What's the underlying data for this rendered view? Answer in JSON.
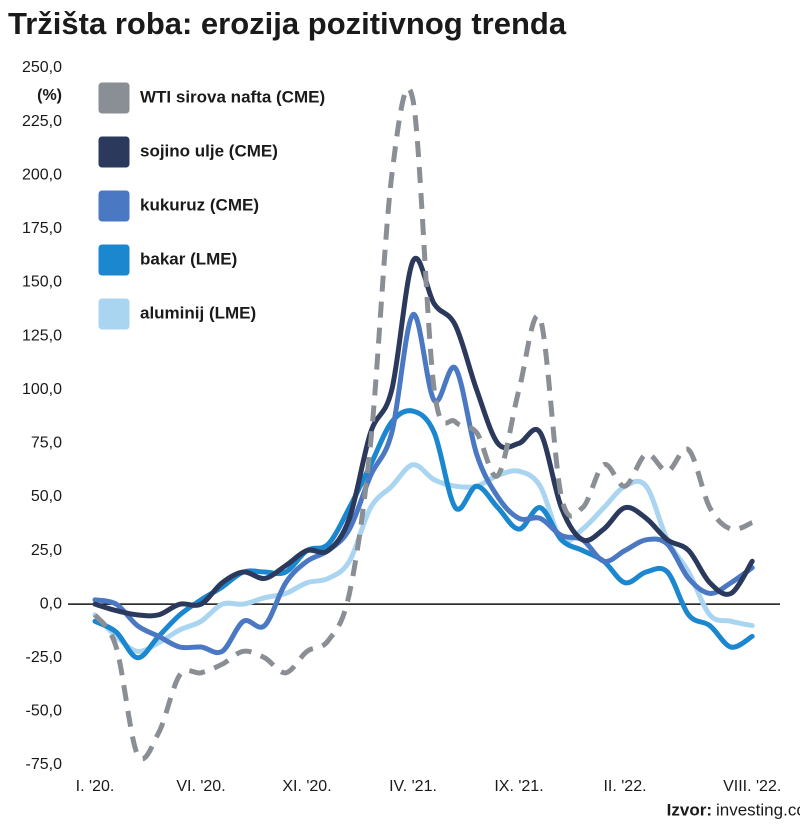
{
  "chart_data": {
    "type": "line",
    "title": "Tržišta roba: erozija pozitivnog trenda",
    "y_unit": "(%)",
    "source_label": "Izvor:",
    "source_text": "investing.com, Bloomberg, LME",
    "categories": [
      "I. '20.",
      null,
      null,
      null,
      null,
      "VI. '20.",
      null,
      null,
      null,
      null,
      "XI. '20.",
      null,
      null,
      null,
      null,
      "IV. '21.",
      null,
      null,
      null,
      null,
      "IX. '21.",
      null,
      null,
      null,
      null,
      "II. '22.",
      null,
      null,
      null,
      null,
      null,
      "VIII. '22."
    ],
    "ylim": [
      -75,
      250
    ],
    "yticks": [
      {
        "value": -75,
        "label": "-75,0"
      },
      {
        "value": -50,
        "label": "-50,0"
      },
      {
        "value": -25,
        "label": "-25,0"
      },
      {
        "value": 0,
        "label": "0,0"
      },
      {
        "value": 25,
        "label": "25,0"
      },
      {
        "value": 50,
        "label": "50,0"
      },
      {
        "value": 75,
        "label": "75,0"
      },
      {
        "value": 100,
        "label": "100,0"
      },
      {
        "value": 125,
        "label": "125,0"
      },
      {
        "value": 150,
        "label": "150,0"
      },
      {
        "value": 175,
        "label": "175,0"
      },
      {
        "value": 200,
        "label": "200,0"
      },
      {
        "value": 225,
        "label": "225,0"
      },
      {
        "value": 250,
        "label": "250,0"
      }
    ],
    "series": [
      {
        "name": "WTI sirova nafta (CME)",
        "color": "#8a8f95",
        "dashed": true,
        "values": [
          -5,
          -20,
          -70,
          -60,
          -33,
          -32,
          -28,
          -22,
          -25,
          -32,
          -22,
          -17,
          5,
          75,
          200,
          235,
          100,
          85,
          80,
          60,
          100,
          133,
          50,
          45,
          65,
          55,
          70,
          62,
          72,
          45,
          35,
          38
        ]
      },
      {
        "name": "sojino ulje (CME)",
        "color": "#2b3a5c",
        "values": [
          0,
          -3,
          -5,
          -5,
          0,
          0,
          10,
          15,
          12,
          18,
          25,
          25,
          40,
          80,
          100,
          160,
          140,
          130,
          100,
          75,
          75,
          80,
          45,
          30,
          35,
          45,
          40,
          30,
          25,
          10,
          5,
          20
        ]
      },
      {
        "name": "kukuruz (CME)",
        "color": "#4a78c2",
        "values": [
          2,
          0,
          -10,
          -15,
          -20,
          -20,
          -22,
          -8,
          -10,
          10,
          20,
          25,
          35,
          60,
          80,
          135,
          95,
          110,
          70,
          50,
          40,
          40,
          32,
          30,
          20,
          25,
          30,
          28,
          12,
          5,
          10,
          17
        ]
      },
      {
        "name": "bakar (LME)",
        "color": "#1a87cf",
        "values": [
          -8,
          -13,
          -25,
          -15,
          -5,
          2,
          8,
          15,
          15,
          15,
          25,
          28,
          45,
          65,
          85,
          90,
          80,
          45,
          55,
          45,
          35,
          45,
          30,
          25,
          20,
          10,
          15,
          15,
          -5,
          -10,
          -20,
          -15
        ]
      },
      {
        "name": "aluminij (LME)",
        "color": "#a9d5f0",
        "values": [
          -5,
          -15,
          -22,
          -18,
          -12,
          -8,
          0,
          0,
          3,
          5,
          10,
          12,
          20,
          45,
          55,
          65,
          58,
          55,
          55,
          60,
          62,
          55,
          30,
          35,
          45,
          55,
          55,
          30,
          15,
          -5,
          -8,
          -10
        ]
      }
    ]
  }
}
